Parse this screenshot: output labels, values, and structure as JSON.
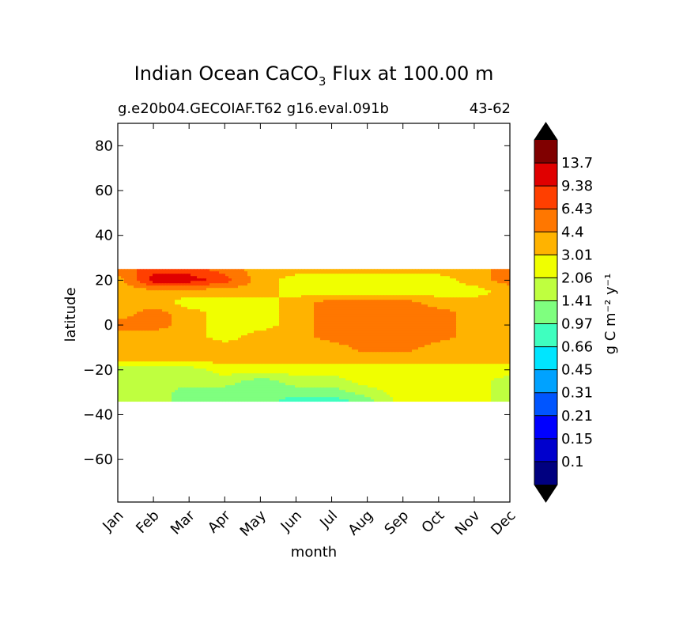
{
  "chart_data": {
    "type": "heatmap",
    "title": {
      "prefix": "Indian Ocean CaCO",
      "subscript": "3",
      "suffix": " Flux at 100.00 m"
    },
    "subtitle_left": "g.e20b04.GECOIAF.T62 g16.eval.091b",
    "subtitle_right": "43-62",
    "xlabel": "month",
    "ylabel": "latitude",
    "x_categories": [
      "Jan",
      "Feb",
      "Mar",
      "Apr",
      "May",
      "Jun",
      "Jul",
      "Aug",
      "Sep",
      "Oct",
      "Nov",
      "Dec"
    ],
    "xlim": [
      1,
      12
    ],
    "ylim": [
      -79,
      90
    ],
    "y_ticks": [
      {
        "value": 80,
        "label": "80"
      },
      {
        "value": 60,
        "label": "60"
      },
      {
        "value": 40,
        "label": "40"
      },
      {
        "value": 20,
        "label": "20"
      },
      {
        "value": 0,
        "label": "0"
      },
      {
        "value": -20,
        "label": "−20"
      },
      {
        "value": -40,
        "label": "−40"
      },
      {
        "value": -60,
        "label": "−60"
      }
    ],
    "data_lat_range": [
      -34,
      25
    ],
    "colorbar": {
      "label": "g C m⁻² y⁻¹",
      "levels": [
        "0.1",
        "0.15",
        "0.21",
        "0.31",
        "0.45",
        "0.66",
        "0.97",
        "1.41",
        "2.06",
        "3.01",
        "4.4",
        "6.43",
        "9.38",
        "13.7"
      ],
      "colors": [
        "#000080",
        "#0000cd",
        "#0000ff",
        "#0055ff",
        "#00a2ff",
        "#00e5ff",
        "#3fffbf",
        "#7fff7f",
        "#bfff3f",
        "#f0ff00",
        "#ffb300",
        "#ff7700",
        "#ff3f00",
        "#e00000",
        "#800000"
      ],
      "over_color": "#000000",
      "under_color": "#000000"
    },
    "grid": false,
    "legend_placement": "right colorbar",
    "field_levels": {
      "latitudes": [
        25,
        20,
        15,
        10,
        5,
        0,
        -5,
        -10,
        -15,
        -20,
        -25,
        -30,
        -34
      ],
      "rows": [
        [
          11,
          12,
          12,
          11,
          10,
          10,
          10,
          10,
          10,
          10,
          10,
          11
        ],
        [
          10,
          13,
          13,
          12,
          10,
          9,
          9,
          9,
          9,
          9,
          10,
          11
        ],
        [
          10,
          10,
          10,
          10,
          10,
          9,
          9,
          9,
          9,
          9,
          9,
          10
        ],
        [
          10,
          10,
          9,
          9,
          9,
          10,
          11,
          11,
          11,
          10,
          10,
          10
        ],
        [
          10,
          11,
          10,
          9,
          9,
          10,
          11,
          11,
          11,
          11,
          10,
          10
        ],
        [
          11,
          11,
          10,
          9,
          9,
          10,
          11,
          11,
          11,
          11,
          10,
          10
        ],
        [
          10,
          10,
          10,
          9,
          10,
          10,
          11,
          11,
          11,
          11,
          10,
          10
        ],
        [
          10,
          10,
          10,
          10,
          10,
          10,
          10,
          11,
          11,
          10,
          10,
          10
        ],
        [
          10,
          10,
          10,
          10,
          10,
          10,
          10,
          10,
          10,
          10,
          10,
          10
        ],
        [
          8,
          8,
          8,
          9,
          9,
          9,
          9,
          9,
          9,
          9,
          9,
          9
        ],
        [
          8,
          8,
          8,
          8,
          7,
          8,
          8,
          9,
          9,
          9,
          9,
          8
        ],
        [
          8,
          8,
          7,
          7,
          7,
          7,
          7,
          8,
          9,
          9,
          9,
          8
        ],
        [
          8,
          8,
          7,
          7,
          7,
          6,
          6,
          7,
          9,
          9,
          9,
          8
        ]
      ]
    }
  }
}
